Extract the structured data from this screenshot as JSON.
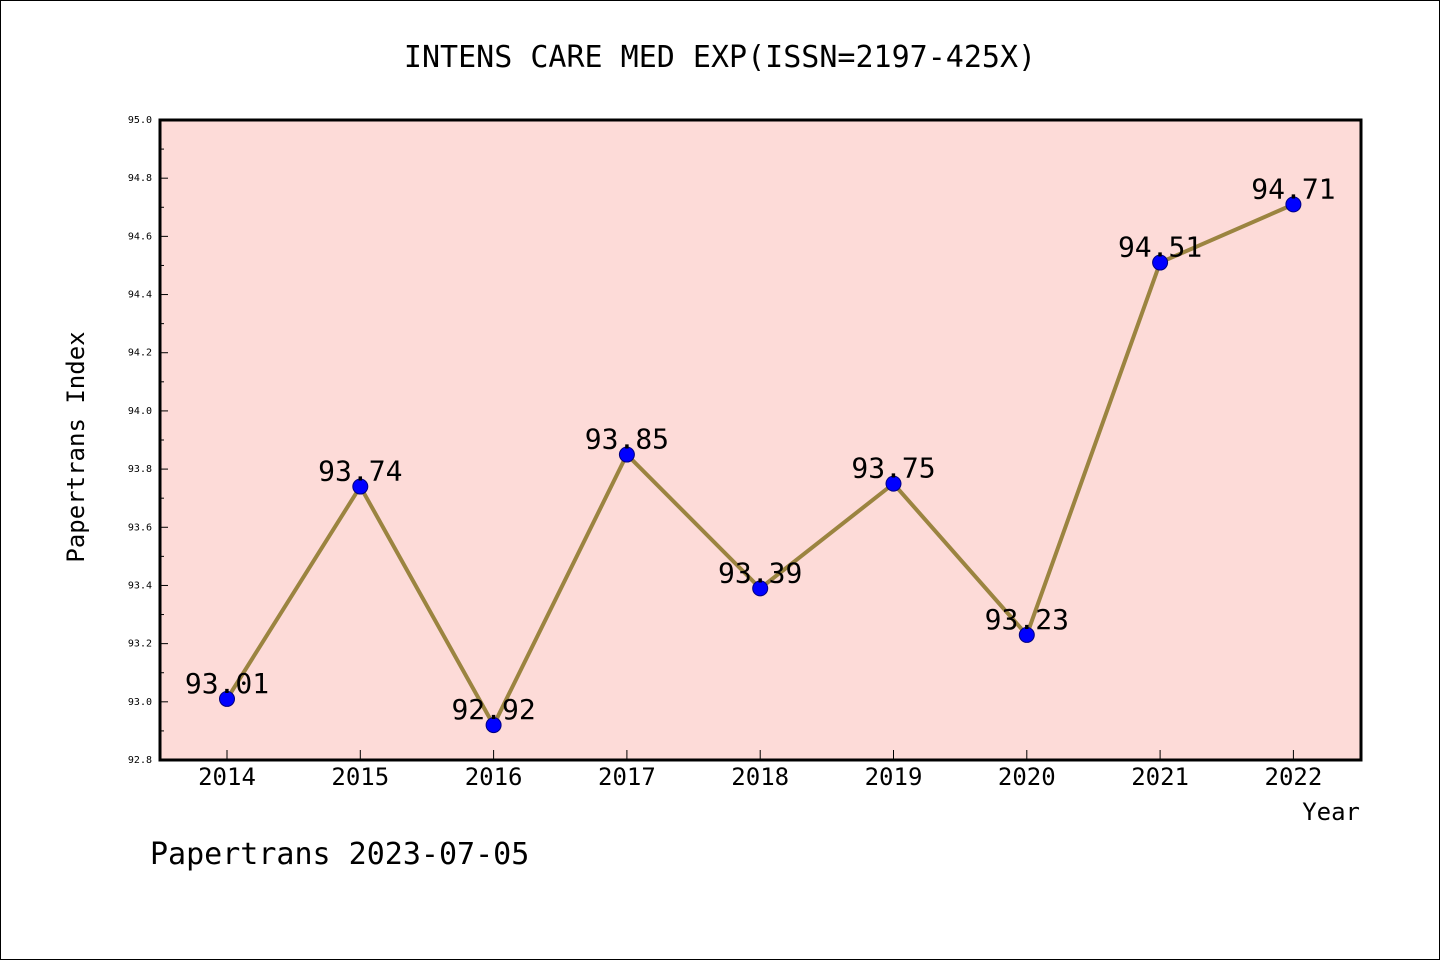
{
  "chart_data": {
    "type": "line",
    "title": "INTENS CARE MED EXP(ISSN=2197-425X)",
    "xlabel": "Year",
    "ylabel": "Papertrans Index",
    "categories": [
      "2014",
      "2015",
      "2016",
      "2017",
      "2018",
      "2019",
      "2020",
      "2021",
      "2022"
    ],
    "series": [
      {
        "values": [
          93.01,
          93.74,
          92.92,
          93.85,
          93.39,
          93.75,
          93.23,
          94.51,
          94.71
        ],
        "value_labels": [
          "93.01",
          "93.74",
          "92.92",
          "93.85",
          "93.39",
          "93.75",
          "93.23",
          "94.51",
          "94.71"
        ]
      }
    ],
    "ylim": [
      92.8,
      95.0
    ],
    "yticks": [
      "92.8",
      "93.0",
      "93.2",
      "93.4",
      "93.6",
      "93.8",
      "94.0",
      "94.2",
      "94.4",
      "94.6",
      "94.8",
      "95.0"
    ],
    "grid": false,
    "footer": "Papertrans 2023-07-05",
    "colors": {
      "plot_background": "#fddbd8",
      "line": "#9b8440",
      "marker": "#0000ff",
      "marker_edge": "#000080",
      "axes": "#000000"
    }
  }
}
